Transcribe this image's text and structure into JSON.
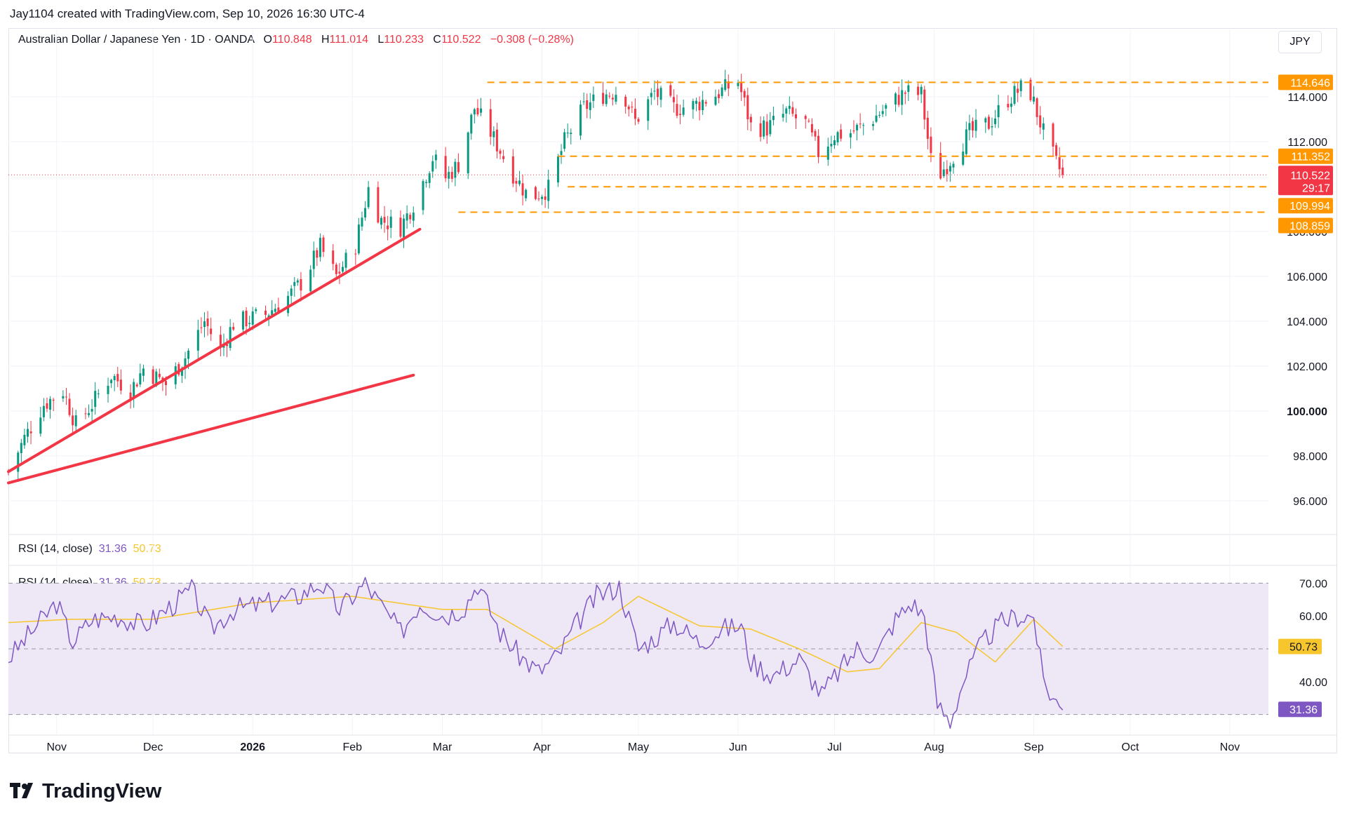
{
  "header": {
    "credit": "Jay1104 created with TradingView.com, Sep 10, 2026 16:30 UTC-4"
  },
  "legend": {
    "symbol": "Australian Dollar / Japanese Yen · 1D · OANDA",
    "o_label": "O",
    "o_value": "110.848",
    "h_label": "H",
    "h_value": "111.014",
    "l_label": "L",
    "l_value": "110.233",
    "c_label": "C",
    "c_value": "110.522",
    "change": "−0.308 (−0.28%)"
  },
  "currency_button": "JPY",
  "rsi_legend": {
    "name": "RSI (14, close)",
    "rsi_value": "31.36",
    "ma_value": "50.73"
  },
  "brand": "TradingView",
  "colors": {
    "up": "#089981",
    "down": "#f23645",
    "level": "#ff9800",
    "trendline": "#f23645",
    "rsi": "#7e57c2",
    "rsi_ma": "#f7c62c",
    "rsi_band": "#ede7f6"
  },
  "chart_data": [
    {
      "type": "candlestick",
      "ylim": [
        94.5,
        117.0
      ],
      "y_ticks": [
        "96.000",
        "98.000",
        "100.000",
        "102.000",
        "104.000",
        "106.000",
        "108.000",
        "112.000",
        "114.000"
      ],
      "x_ticks": [
        "Nov",
        "Dec",
        "2026",
        "Feb",
        "Mar",
        "Apr",
        "May",
        "Jun",
        "Jul",
        "Aug",
        "Sep",
        "Oct",
        "Nov"
      ],
      "x_tick_dates": [
        "2025-11-01",
        "2025-12-01",
        "2026-01-01",
        "2026-02-01",
        "2026-03-01",
        "2026-04-01",
        "2026-05-01",
        "2026-06-01",
        "2026-07-01",
        "2026-08-01",
        "2026-09-01",
        "2026-10-01",
        "2026-11-01"
      ],
      "x_range": [
        "2025-10-17",
        "2026-11-13"
      ],
      "price_path": [
        [
          "2025-10-17",
          97.3
        ],
        [
          "2025-10-22",
          98.8
        ],
        [
          "2025-10-28",
          100.3
        ],
        [
          "2025-11-03",
          100.9
        ],
        [
          "2025-11-07",
          99.4
        ],
        [
          "2025-11-12",
          100.3
        ],
        [
          "2025-11-18",
          101.6
        ],
        [
          "2025-11-24",
          100.9
        ],
        [
          "2025-11-28",
          101.9
        ],
        [
          "2025-12-05",
          101.2
        ],
        [
          "2025-12-11",
          102.4
        ],
        [
          "2025-12-17",
          104.0
        ],
        [
          "2025-12-22",
          102.7
        ],
        [
          "2025-12-26",
          103.9
        ],
        [
          "2026-01-05",
          104.3
        ],
        [
          "2026-01-12",
          105.1
        ],
        [
          "2026-01-16",
          105.7
        ],
        [
          "2026-01-22",
          107.3
        ],
        [
          "2026-01-27",
          106.0
        ],
        [
          "2026-02-02",
          107.4
        ],
        [
          "2026-02-06",
          109.9
        ],
        [
          "2026-02-10",
          108.5
        ],
        [
          "2026-02-16",
          108.2
        ],
        [
          "2026-02-21",
          109.5
        ],
        [
          "2026-02-26",
          111.3
        ],
        [
          "2026-03-02",
          110.4
        ],
        [
          "2026-03-06",
          111.0
        ],
        [
          "2026-03-11",
          113.5
        ],
        [
          "2026-03-16",
          112.4
        ],
        [
          "2026-03-22",
          110.8
        ],
        [
          "2026-03-28",
          109.5
        ],
        [
          "2026-04-03",
          109.9
        ],
        [
          "2026-04-08",
          112.0
        ],
        [
          "2026-04-14",
          113.5
        ],
        [
          "2026-04-20",
          114.1
        ],
        [
          "2026-04-26",
          114.3
        ],
        [
          "2026-04-30",
          112.9
        ],
        [
          "2026-05-06",
          114.2
        ],
        [
          "2026-05-12",
          113.5
        ],
        [
          "2026-05-18",
          113.6
        ],
        [
          "2026-05-25",
          114.1
        ],
        [
          "2026-06-01",
          114.7
        ],
        [
          "2026-06-05",
          112.7
        ],
        [
          "2026-06-10",
          112.6
        ],
        [
          "2026-06-16",
          113.3
        ],
        [
          "2026-06-22",
          112.8
        ],
        [
          "2026-06-26",
          111.5
        ],
        [
          "2026-07-01",
          112.3
        ],
        [
          "2026-07-06",
          112.4
        ],
        [
          "2026-07-11",
          112.8
        ],
        [
          "2026-07-17",
          113.5
        ],
        [
          "2026-07-23",
          114.2
        ],
        [
          "2026-07-28",
          114.1
        ],
        [
          "2026-08-01",
          110.2
        ],
        [
          "2026-08-06",
          111.2
        ],
        [
          "2026-08-12",
          112.4
        ],
        [
          "2026-08-18",
          112.8
        ],
        [
          "2026-08-24",
          113.9
        ],
        [
          "2026-08-30",
          114.6
        ],
        [
          "2026-09-04",
          112.4
        ],
        [
          "2026-09-08",
          111.0
        ],
        [
          "2026-09-10",
          110.522
        ]
      ],
      "support_resistance_levels": [
        "114.646",
        "111.352",
        "109.994",
        "108.859"
      ],
      "last_price_label": "110.522",
      "countdown_label": "29:17",
      "trendlines": [
        {
          "from": [
            "2025-10-17",
            97.3
          ],
          "to": [
            "2026-02-22",
            108.1
          ]
        },
        {
          "from": [
            "2025-10-17",
            96.8
          ],
          "to": [
            "2026-02-20",
            101.6
          ]
        }
      ]
    },
    {
      "type": "line",
      "title": "RSI (14, close)",
      "ylim": [
        25,
        75
      ],
      "y_ticks": [
        "40.00",
        "60.00",
        "70.00"
      ],
      "bands": [
        30,
        50,
        70
      ],
      "series": [
        {
          "name": "RSI",
          "path": [
            [
              "2025-10-17",
              47
            ],
            [
              "2025-10-24",
              55
            ],
            [
              "2025-11-01",
              64
            ],
            [
              "2025-11-06",
              52
            ],
            [
              "2025-11-12",
              59
            ],
            [
              "2025-11-20",
              60
            ],
            [
              "2025-11-28",
              57
            ],
            [
              "2025-12-08",
              64
            ],
            [
              "2025-12-13",
              68
            ],
            [
              "2025-12-19",
              56
            ],
            [
              "2025-12-26",
              62
            ],
            [
              "2026-01-06",
              64
            ],
            [
              "2026-01-15",
              66
            ],
            [
              "2026-01-22",
              70
            ],
            [
              "2026-01-28",
              62
            ],
            [
              "2026-02-05",
              70
            ],
            [
              "2026-02-10",
              63
            ],
            [
              "2026-02-16",
              55
            ],
            [
              "2026-02-22",
              64
            ],
            [
              "2026-03-02",
              60
            ],
            [
              "2026-03-08",
              63
            ],
            [
              "2026-03-12",
              70
            ],
            [
              "2026-03-19",
              55
            ],
            [
              "2026-03-25",
              48
            ],
            [
              "2026-03-31",
              43
            ],
            [
              "2026-04-06",
              48
            ],
            [
              "2026-04-12",
              58
            ],
            [
              "2026-04-18",
              66
            ],
            [
              "2026-04-25",
              69
            ],
            [
              "2026-05-01",
              50
            ],
            [
              "2026-05-07",
              54
            ],
            [
              "2026-05-12",
              58
            ],
            [
              "2026-05-20",
              52
            ],
            [
              "2026-05-27",
              56
            ],
            [
              "2026-06-02",
              57
            ],
            [
              "2026-06-05",
              46
            ],
            [
              "2026-06-12",
              42
            ],
            [
              "2026-06-20",
              47
            ],
            [
              "2026-06-27",
              36
            ],
            [
              "2026-07-03",
              44
            ],
            [
              "2026-07-08",
              50
            ],
            [
              "2026-07-14",
              48
            ],
            [
              "2026-07-20",
              59
            ],
            [
              "2026-07-25",
              64
            ],
            [
              "2026-07-29",
              60
            ],
            [
              "2026-08-02",
              33
            ],
            [
              "2026-08-06",
              28
            ],
            [
              "2026-08-10",
              40
            ],
            [
              "2026-08-16",
              52
            ],
            [
              "2026-08-22",
              58
            ],
            [
              "2026-08-27",
              60
            ],
            [
              "2026-09-01",
              60
            ],
            [
              "2026-09-04",
              40
            ],
            [
              "2026-09-07",
              35
            ],
            [
              "2026-09-10",
              31.36
            ]
          ]
        },
        {
          "name": "RSI MA",
          "path": [
            [
              "2025-10-17",
              58
            ],
            [
              "2025-11-05",
              59
            ],
            [
              "2025-12-01",
              59
            ],
            [
              "2026-01-01",
              64
            ],
            [
              "2026-02-01",
              66
            ],
            [
              "2026-03-01",
              62
            ],
            [
              "2026-03-15",
              62
            ],
            [
              "2026-04-05",
              50
            ],
            [
              "2026-04-20",
              58
            ],
            [
              "2026-05-01",
              66
            ],
            [
              "2026-05-20",
              57
            ],
            [
              "2026-06-05",
              56
            ],
            [
              "2026-06-20",
              50
            ],
            [
              "2026-07-05",
              43
            ],
            [
              "2026-07-15",
              44
            ],
            [
              "2026-07-28",
              58
            ],
            [
              "2026-08-08",
              55
            ],
            [
              "2026-08-20",
              46
            ],
            [
              "2026-09-01",
              59
            ],
            [
              "2026-09-10",
              50.73
            ]
          ]
        }
      ],
      "rsi_label": "31.36",
      "ma_label": "50.73"
    }
  ]
}
